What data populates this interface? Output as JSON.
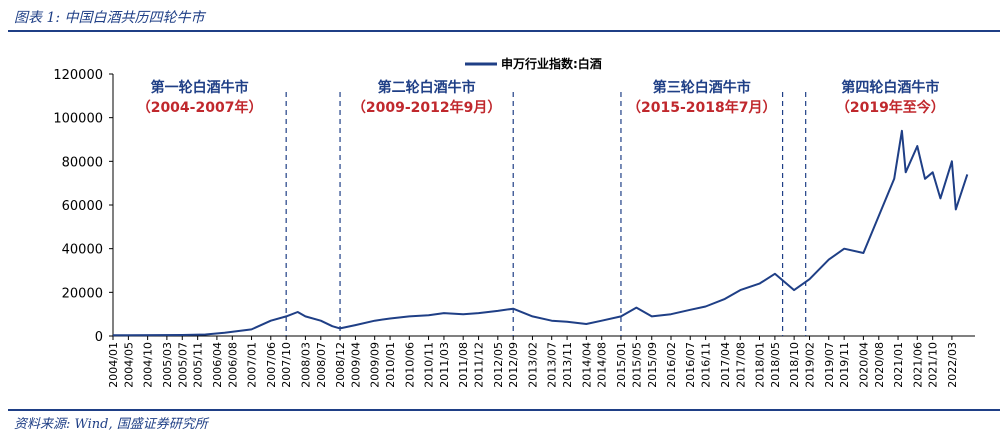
{
  "figure": {
    "title": "图表 1:  中国白酒共历四轮牛市",
    "source": "资料来源: Wind, 国盛证券研究所"
  },
  "chart_data": {
    "type": "line",
    "title": "",
    "xlabel": "",
    "ylabel": "",
    "ylim": [
      0,
      120000
    ],
    "y_ticks": [
      "0",
      "20000",
      "40000",
      "60000",
      "80000",
      "100000",
      "120000"
    ],
    "legend": {
      "position": "top-center",
      "entries": [
        "申万行业指数:白酒"
      ]
    },
    "grid": false,
    "x_ticks": [
      "2004/01",
      "2004/05",
      "2004/10",
      "2005/03",
      "2005/07",
      "2005/11",
      "2006/04",
      "2006/08",
      "2007/01",
      "2007/06",
      "2007/10",
      "2008/03",
      "2008/07",
      "2008/12",
      "2009/04",
      "2009/09",
      "2010/01",
      "2010/06",
      "2010/11",
      "2011/03",
      "2011/08",
      "2011/12",
      "2012/05",
      "2012/09",
      "2013/02",
      "2013/07",
      "2013/11",
      "2014/04",
      "2014/08",
      "2015/01",
      "2015/05",
      "2015/09",
      "2016/02",
      "2016/07",
      "2016/11",
      "2017/04",
      "2017/08",
      "2018/01",
      "2018/05",
      "2018/10",
      "2019/02",
      "2019/07",
      "2019/11",
      "2020/04",
      "2020/08",
      "2021/01",
      "2021/06",
      "2021/10",
      "2022/03"
    ],
    "series": [
      {
        "name": "申万行业指数:白酒",
        "color": "#1f3f86",
        "x": [
          "2004/01",
          "2004/12",
          "2005/07",
          "2006/01",
          "2006/06",
          "2007/01",
          "2007/06",
          "2007/10",
          "2008/01",
          "2008/03",
          "2008/07",
          "2008/10",
          "2008/12",
          "2009/04",
          "2009/09",
          "2010/01",
          "2010/06",
          "2010/11",
          "2011/03",
          "2011/08",
          "2011/12",
          "2012/05",
          "2012/09",
          "2013/02",
          "2013/07",
          "2013/11",
          "2014/04",
          "2014/08",
          "2015/01",
          "2015/05",
          "2015/09",
          "2016/02",
          "2016/07",
          "2016/11",
          "2017/04",
          "2017/08",
          "2018/01",
          "2018/05",
          "2018/10",
          "2019/02",
          "2019/07",
          "2019/11",
          "2020/04",
          "2020/08",
          "2020/12",
          "2021/02",
          "2021/03",
          "2021/06",
          "2021/08",
          "2021/10",
          "2021/12",
          "2022/03",
          "2022/04",
          "2022/07"
        ],
        "values": [
          300,
          400,
          450,
          700,
          1500,
          3000,
          7000,
          9000,
          11000,
          9000,
          7000,
          4500,
          3500,
          5000,
          7000,
          8000,
          9000,
          9500,
          10500,
          10000,
          10500,
          11500,
          12500,
          9000,
          7000,
          6500,
          5500,
          7000,
          9000,
          13000,
          9000,
          10000,
          12000,
          13500,
          17000,
          21000,
          24000,
          28500,
          21000,
          26000,
          35000,
          40000,
          38000,
          55000,
          72000,
          94000,
          75000,
          87000,
          72000,
          75000,
          63000,
          80000,
          58000,
          74000
        ]
      }
    ],
    "phases": [
      {
        "title": "第一轮白酒牛市",
        "range": "（2004-2007年）",
        "start": "2004/01",
        "end": "2007/10"
      },
      {
        "title": "第二轮白酒牛市",
        "range": "（2009-2012年9月）",
        "start": "2008/12",
        "end": "2012/09"
      },
      {
        "title": "第三轮白酒牛市",
        "range": "（2015-2018年7月）",
        "start": "2015/01",
        "end": "2018/07"
      },
      {
        "title": "第四轮白酒牛市",
        "range": "（2019年至今）",
        "start": "2019/01",
        "end": ""
      }
    ]
  }
}
